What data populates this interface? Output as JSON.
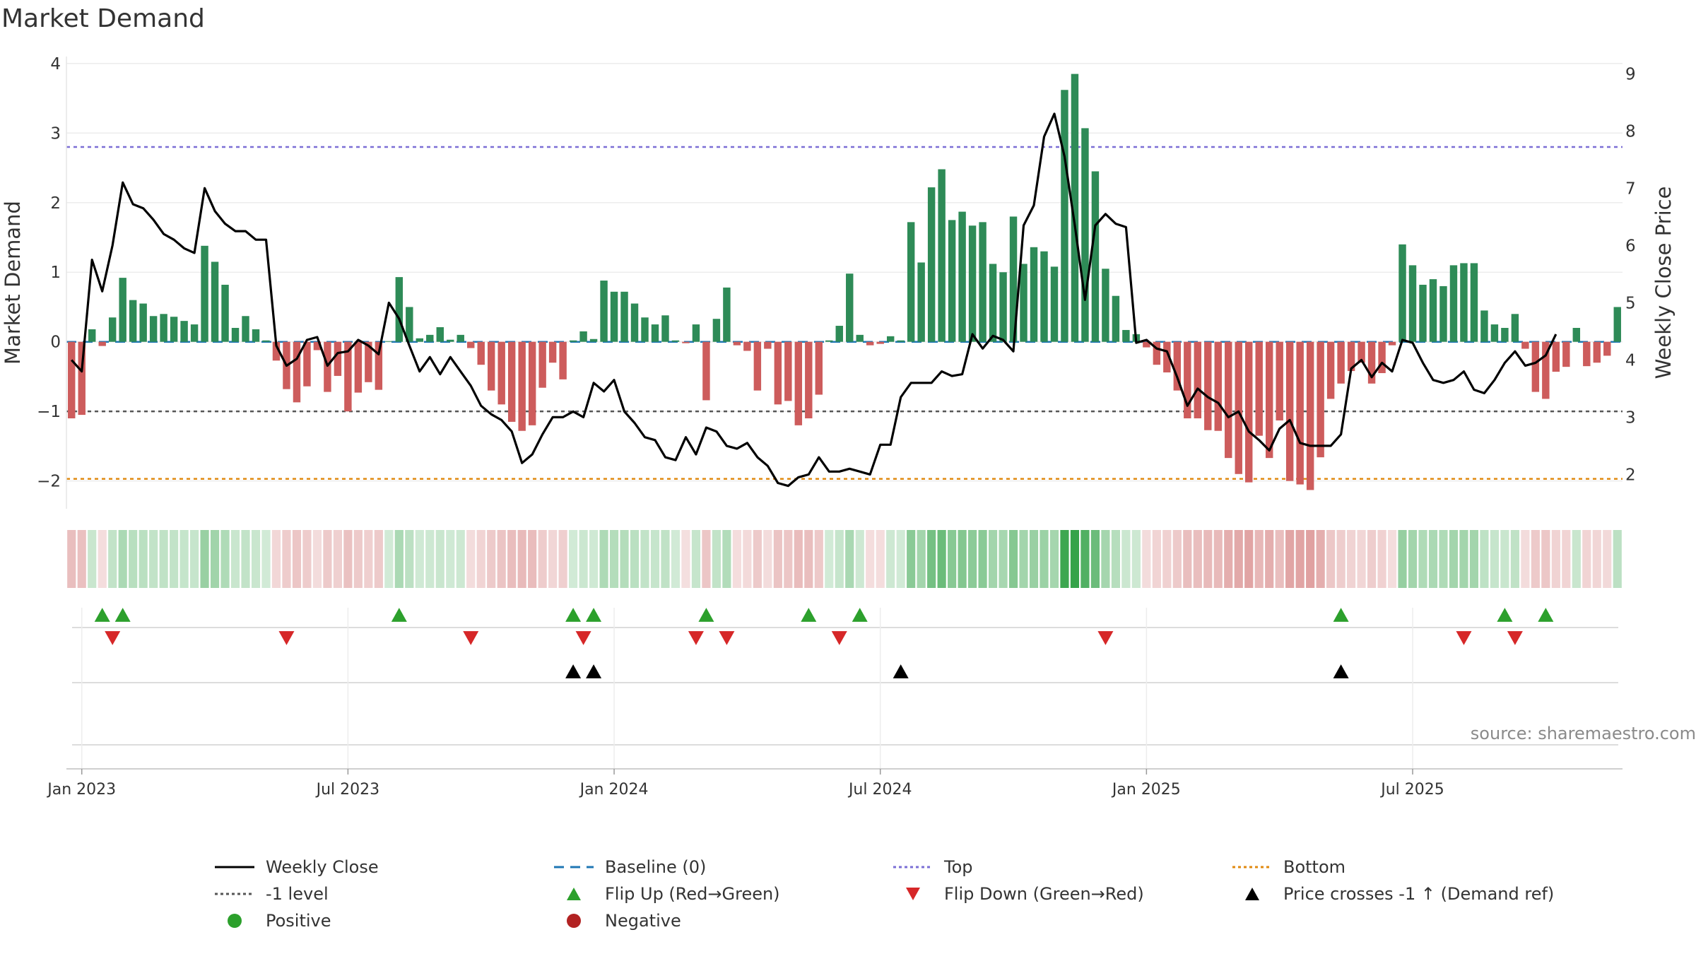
{
  "title": "Market Demand",
  "source": "source: sharemaestro.com",
  "chart_data": {
    "type": "bar",
    "title": "Market Demand",
    "xlabel": "",
    "ylabel": "Market Demand",
    "y2label": "Weekly Close Price",
    "ylim": [
      -2.4,
      4.1
    ],
    "y2lim": [
      1.4,
      9.3
    ],
    "yticks": [
      "−2",
      "−1",
      "0",
      "1",
      "2",
      "3",
      "4"
    ],
    "y2ticks": [
      "2",
      "3",
      "4",
      "5",
      "6",
      "7",
      "8",
      "9"
    ],
    "x_tick_labels": [
      "Jan 2023",
      "Jul 2023",
      "Jan 2024",
      "Jul 2024",
      "Jan 2025",
      "Jul 2025"
    ],
    "x_tick_weeks": [
      1,
      27,
      53,
      79,
      105,
      131
    ],
    "reference_lines": {
      "top": 2.8,
      "minus1": -1.0,
      "bottom": -1.97,
      "baseline": 0
    },
    "demand": [
      -1.1,
      -1.05,
      0.18,
      -0.06,
      0.35,
      0.92,
      0.6,
      0.55,
      0.37,
      0.4,
      0.36,
      0.3,
      0.25,
      1.38,
      1.15,
      0.82,
      0.2,
      0.37,
      0.18,
      0.02,
      -0.27,
      -0.68,
      -0.87,
      -0.64,
      -0.12,
      -0.72,
      -0.49,
      -1.0,
      -0.73,
      -0.58,
      -0.69,
      0.01,
      0.93,
      0.5,
      0.05,
      0.1,
      0.21,
      0.03,
      0.1,
      -0.09,
      -0.33,
      -0.7,
      -0.9,
      -1.15,
      -1.28,
      -1.2,
      -0.66,
      -0.3,
      -0.54,
      0.02,
      0.15,
      0.04,
      0.88,
      0.72,
      0.72,
      0.55,
      0.35,
      0.25,
      0.38,
      0.02,
      -0.02,
      0.25,
      -0.84,
      0.33,
      0.78,
      -0.05,
      -0.13,
      -0.7,
      -0.1,
      -0.9,
      -0.85,
      -1.2,
      -1.1,
      -0.76,
      0.02,
      0.23,
      0.98,
      0.1,
      -0.05,
      -0.03,
      0.08,
      0.02,
      1.72,
      1.14,
      2.22,
      2.48,
      1.75,
      1.87,
      1.67,
      1.72,
      1.12,
      1.0,
      1.8,
      1.12,
      1.36,
      1.3,
      1.08,
      3.62,
      3.85,
      3.07,
      2.45,
      1.05,
      0.66,
      0.17,
      0.11,
      -0.08,
      -0.33,
      -0.44,
      -0.7,
      -1.1,
      -1.1,
      -1.27,
      -1.28,
      -1.67,
      -1.9,
      -2.02,
      -1.35,
      -1.67,
      -1.13,
      -2.0,
      -2.05,
      -2.13,
      -1.66,
      -0.82,
      -0.6,
      -0.42,
      -0.3,
      -0.6,
      -0.45,
      -0.05,
      1.4,
      1.1,
      0.82,
      0.9,
      0.8,
      1.1,
      1.13,
      1.13,
      0.45,
      0.25,
      0.2,
      0.4,
      -0.1,
      -0.72,
      -0.82,
      -0.43,
      -0.36,
      0.2,
      -0.35,
      -0.3,
      -0.2,
      0.5
    ],
    "weekly_close": [
      4.0,
      3.8,
      5.75,
      5.2,
      6.0,
      7.1,
      6.72,
      6.65,
      6.45,
      6.2,
      6.1,
      5.95,
      5.87,
      7.0,
      6.6,
      6.38,
      6.25,
      6.25,
      6.1,
      6.1,
      4.25,
      3.9,
      4.02,
      4.35,
      4.4,
      3.9,
      4.12,
      4.15,
      4.35,
      4.25,
      4.1,
      5.0,
      4.72,
      4.25,
      3.8,
      4.05,
      3.75,
      4.05,
      3.8,
      3.55,
      3.2,
      3.05,
      2.95,
      2.75,
      2.2,
      2.35,
      2.7,
      3.0,
      3.0,
      3.1,
      3.0,
      3.6,
      3.45,
      3.65,
      3.1,
      2.9,
      2.65,
      2.6,
      2.3,
      2.25,
      2.65,
      2.35,
      2.82,
      2.75,
      2.5,
      2.45,
      2.55,
      2.3,
      2.15,
      1.85,
      1.8,
      1.95,
      2.0,
      2.3,
      2.05,
      2.05,
      2.1,
      2.05,
      2.0,
      2.52,
      2.52,
      3.35,
      3.6,
      3.6,
      3.6,
      3.8,
      3.72,
      3.75,
      4.45,
      4.2,
      4.42,
      4.35,
      4.15,
      6.35,
      6.7,
      7.9,
      8.3,
      7.55,
      6.35,
      5.05,
      6.35,
      6.55,
      6.38,
      6.32,
      4.3,
      4.35,
      4.2,
      4.15,
      3.7,
      3.2,
      3.5,
      3.35,
      3.25,
      3.0,
      3.1,
      2.75,
      2.6,
      2.42,
      2.8,
      2.95,
      2.55,
      2.5,
      2.5,
      2.5,
      2.7,
      3.85,
      4.0,
      3.7,
      3.95,
      3.8,
      4.35,
      4.3,
      3.95,
      3.65,
      3.6,
      3.65,
      3.8,
      3.48,
      3.42,
      3.65,
      3.95,
      4.15,
      3.9,
      3.95,
      4.08,
      4.45
    ],
    "flip_up_weeks": [
      3,
      5,
      32,
      49,
      51,
      62,
      72,
      77,
      124,
      140,
      144
    ],
    "flip_down_weeks": [
      4,
      21,
      39,
      50,
      61,
      64,
      75,
      101,
      136,
      141
    ],
    "price_cross_weeks": [
      49,
      51,
      81,
      124
    ],
    "series": [
      {
        "name": "Weekly Close",
        "values": "weekly_close"
      },
      {
        "name": "Market Demand",
        "values": "demand"
      }
    ]
  },
  "legend": [
    {
      "label": "Weekly Close",
      "kind": "line-solid",
      "color": "#000000"
    },
    {
      "label": "Baseline (0)",
      "kind": "line-dash",
      "color": "#1f77b4"
    },
    {
      "label": "Top",
      "kind": "line-dot",
      "color": "#7b6fd6"
    },
    {
      "label": "Bottom",
      "kind": "line-dot",
      "color": "#e08a10"
    },
    {
      "label": "-1 level",
      "kind": "line-dot",
      "color": "#555555"
    },
    {
      "label": "Flip Up (Red→Green)",
      "kind": "tri-up",
      "color": "#2ca02c"
    },
    {
      "label": "Flip Down (Green→Red)",
      "kind": "tri-down",
      "color": "#d62728"
    },
    {
      "label": "Price crosses -1 ↑ (Demand ref)",
      "kind": "tri-up",
      "color": "#000000"
    },
    {
      "label": "Positive",
      "kind": "dot",
      "color": "#2ca02c"
    },
    {
      "label": "Negative",
      "kind": "dot",
      "color": "#b22222"
    }
  ],
  "colors": {
    "positive": "#2e8b57",
    "negative": "#cd5c5c"
  }
}
